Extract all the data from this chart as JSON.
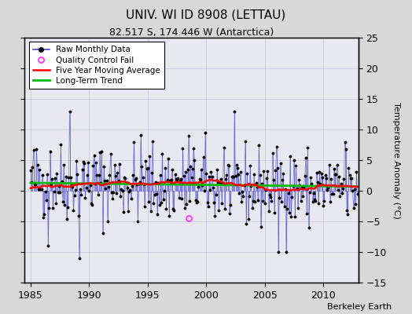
{
  "title": "UNIV. WI ID 8908 (LETTAU)",
  "subtitle": "82.517 S, 174.446 W (Antarctica)",
  "ylabel": "Temperature Anomaly (°C)",
  "watermark": "Berkeley Earth",
  "xlim": [
    1984.5,
    2013.0
  ],
  "ylim": [
    -15,
    25
  ],
  "yticks": [
    -15,
    -10,
    -5,
    0,
    5,
    10,
    15,
    20,
    25
  ],
  "xticks": [
    1985,
    1990,
    1995,
    2000,
    2005,
    2010
  ],
  "background_color": "#d8d8d8",
  "plot_bg_color": "#e8e8f0",
  "raw_color": "#4444cc",
  "qc_color": "#ff44ff",
  "moving_avg_color": "#ff0000",
  "trend_color": "#00bb00",
  "seed": 42,
  "years_start": 1985,
  "years_end": 2012,
  "trend_intercept": 1.8,
  "trend_slope": -0.065,
  "noise_std": 3.2,
  "ma_window": 60,
  "qc_time": 1998.5,
  "qc_val": -4.5
}
